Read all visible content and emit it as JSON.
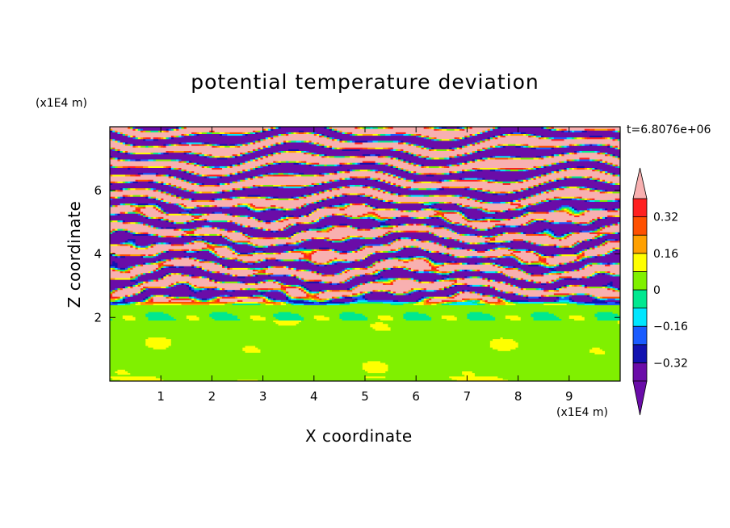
{
  "chart_data": {
    "type": "heatmap",
    "title": "potential temperature deviation",
    "xlabel": "X coordinate",
    "ylabel": "Z coordinate",
    "x_unit_label": "(x1E4 m)",
    "y_unit_label": "(x1E4 m)",
    "time_label": "t=6.8076e+06",
    "xlim": [
      0,
      10
    ],
    "ylim": [
      0,
      8
    ],
    "x_ticks": [
      1,
      2,
      3,
      4,
      5,
      6,
      7,
      8,
      9
    ],
    "y_ticks": [
      2,
      4,
      6
    ],
    "colorbar": {
      "levels": [
        -0.4,
        -0.32,
        -0.24,
        -0.16,
        -0.08,
        0,
        0.08,
        0.16,
        0.24,
        0.32,
        0.4
      ],
      "colors": [
        "#6a0ca8",
        "#1212b0",
        "#1a5cff",
        "#00e6ff",
        "#00e890",
        "#80f000",
        "#ffff00",
        "#ffa000",
        "#ff5000",
        "#ff2020"
      ],
      "over_color": "#f8b0b0",
      "under_color": "#6a0ca8",
      "tick_values": [
        0.32,
        0.16,
        0,
        -0.16,
        -0.32
      ],
      "tick_labels": [
        "0.32",
        "0.16",
        "0",
        "-0.16",
        "-0.32"
      ]
    },
    "grid": false,
    "legend": "right colorbar"
  }
}
